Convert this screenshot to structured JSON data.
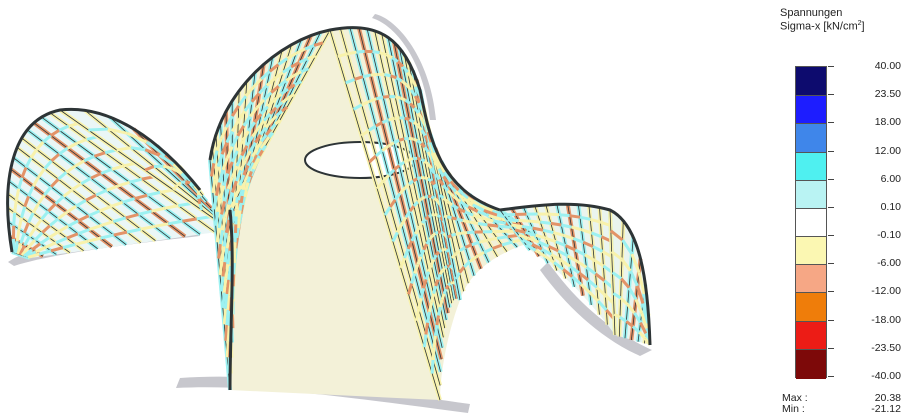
{
  "legend": {
    "title_line1": "Spannungen",
    "title_line2_prefix": "Sigma-x [kN/cm",
    "title_line2_sup": "2",
    "title_line2_suffix": "]",
    "ticks": [
      "40.00",
      "23.50",
      "18.00",
      "12.00",
      "6.00",
      "0.10",
      "-0.10",
      "-6.00",
      "-12.00",
      "-18.00",
      "-23.50",
      "-40.00"
    ],
    "swatches": [
      "#0d0b6e",
      "#1d1dff",
      "#3f86ea",
      "#4ff0f0",
      "#b9f3f3",
      "#ffffff",
      "#fbf7b2",
      "#f6a785",
      "#ef7d0a",
      "#ec1c16",
      "#7d0909"
    ],
    "max_label": "Max :",
    "max_value": "20.38",
    "min_label": "Min :",
    "min_value": "-21.12"
  },
  "colors": {
    "support": "#c7c7cd",
    "beam_cyan": "#9cf1f1",
    "beam_yellow": "#f8f2ac",
    "beam_orange": "#e39368",
    "beam_dark": "#2d3436"
  }
}
